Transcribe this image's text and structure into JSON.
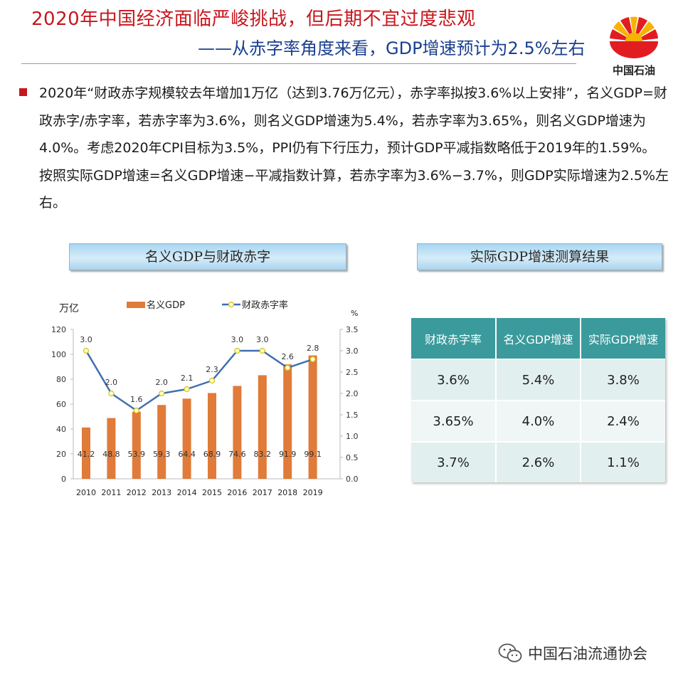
{
  "header": {
    "title_line1": "2020年中国经济面临严峻挑战，但后期不宜过度悲观",
    "title_line2": "——从赤字率角度来看，GDP增速预计为2.5%左右",
    "logo_text": "中国石油"
  },
  "paragraph": "2020年“财政赤字规模较去年增加1万亿（达到3.76万亿元），赤字率拟按3.6%以上安排”，名义GDP=财政赤字/赤字率，若赤字率为3.6%，则名义GDP增速为5.4%，若赤字率为3.65%，则名义GDP增速为4.0%。考虑2020年CPI目标为3.5%，PPI仍有下行压力，预计GDP平减指数略低于2019年的1.59%。按照实际GDP增速=名义GDP增速−平减指数计算，若赤字率为3.6%−3.7%，则GDP实际增速为2.5%左右。",
  "panels": {
    "left_title": "名义GDP与财政赤字",
    "right_title": "实际GDP增速测算结果"
  },
  "colors": {
    "bar": "#e07b39",
    "line": "#3f6fb0",
    "marker_fill": "#ffffc2",
    "marker_stroke": "#d6c21c",
    "title_red": "#c8161d",
    "title_blue": "#1a3f8f",
    "table_header": "#3a9a9c"
  },
  "chart_data": {
    "type": "bar+line",
    "categories": [
      "2010",
      "2011",
      "2012",
      "2013",
      "2014",
      "2015",
      "2016",
      "2017",
      "2018",
      "2019"
    ],
    "series": [
      {
        "name": "名义GDP",
        "type": "bar",
        "axis": "left",
        "values": [
          41.2,
          48.8,
          53.9,
          59.3,
          64.4,
          68.9,
          74.6,
          83.2,
          91.9,
          99.1
        ]
      },
      {
        "name": "财政赤字率",
        "type": "line",
        "axis": "right",
        "values": [
          3.0,
          2.0,
          1.6,
          2.0,
          2.1,
          2.3,
          3.0,
          3.0,
          2.6,
          2.8
        ]
      }
    ],
    "y_left_unit": "万亿",
    "y_right_unit": "%",
    "y_left_ticks": [
      "0",
      "20",
      "40",
      "60",
      "80",
      "100",
      "120"
    ],
    "y_right_ticks": [
      "0.0",
      "0.5",
      "1.0",
      "1.5",
      "2.0",
      "2.5",
      "3.0",
      "3.5"
    ],
    "ylim_left": [
      0,
      120
    ],
    "ylim_right": [
      0,
      3.5
    ],
    "legend_position": "top"
  },
  "table": {
    "headers": [
      "财政赤字率",
      "名义GDP增速",
      "实际GDP增速"
    ],
    "rows": [
      [
        "3.6%",
        "5.4%",
        "3.8%"
      ],
      [
        "3.65%",
        "4.0%",
        "2.4%"
      ],
      [
        "3.7%",
        "2.6%",
        "1.1%"
      ]
    ]
  },
  "watermark": {
    "text": "中国石油流通协会",
    "icon": "wechat-icon"
  }
}
